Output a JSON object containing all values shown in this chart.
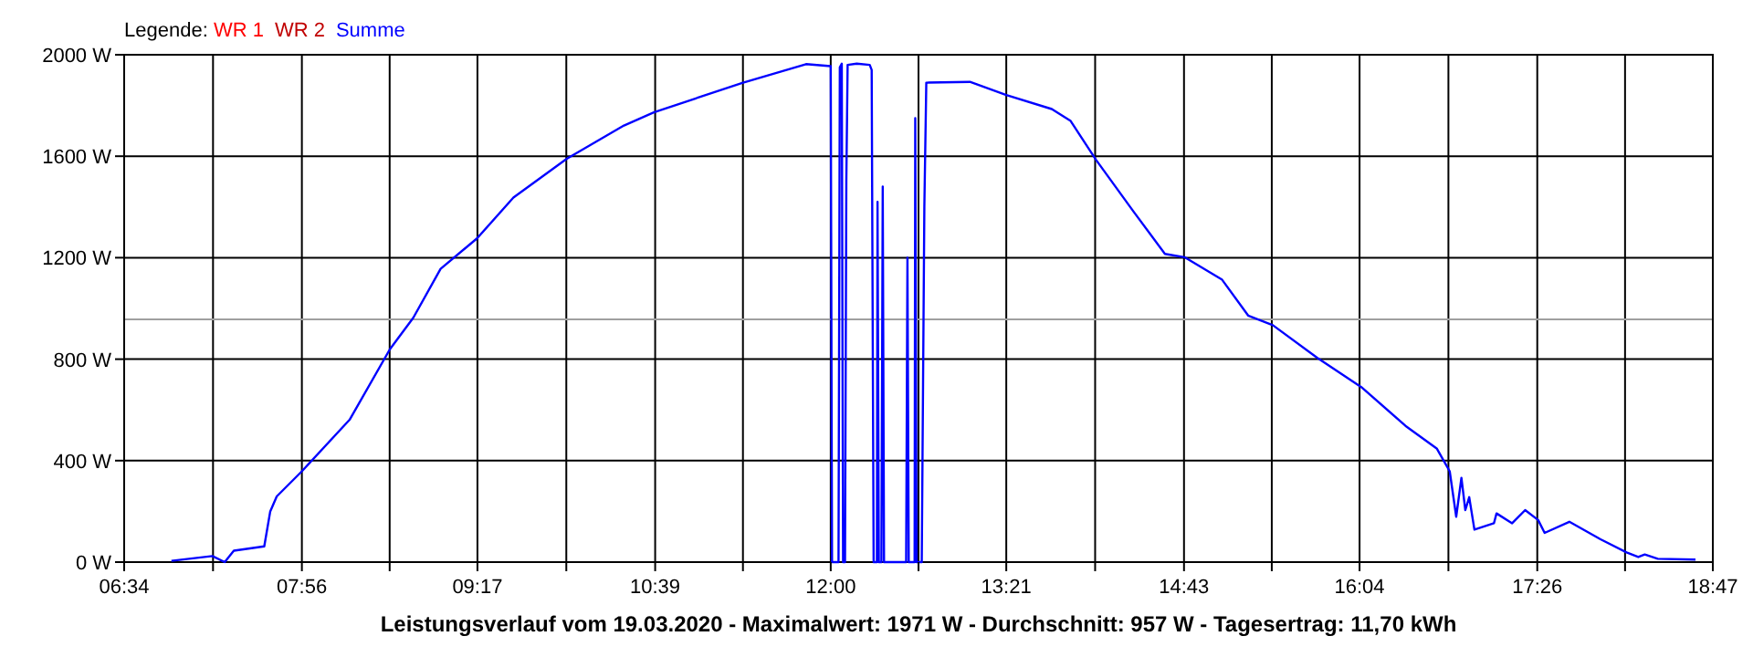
{
  "chart_data": {
    "type": "line",
    "xlabel": "Leistungsverlauf vom 19.03.2020 - Maximalwert: 1971 W - Durchschnitt: 957 W - Tagesertrag: 11,70 kWh",
    "legend_title": "Legende:",
    "legend": "top left",
    "grid": true,
    "marker": "none",
    "line_style": "solid",
    "xlim": [
      6.5667,
      18.7833
    ],
    "xticks": [
      {
        "value": 6.5667,
        "label": "06:34"
      },
      {
        "value": 7.25,
        "label": null
      },
      {
        "value": 7.9333,
        "label": "07:56"
      },
      {
        "value": 8.6083,
        "label": null
      },
      {
        "value": 9.2833,
        "label": "09:17"
      },
      {
        "value": 9.9667,
        "label": null
      },
      {
        "value": 10.65,
        "label": "10:39"
      },
      {
        "value": 11.325,
        "label": null
      },
      {
        "value": 12,
        "label": "12:00"
      },
      {
        "value": 12.675,
        "label": null
      },
      {
        "value": 13.35,
        "label": "13:21"
      },
      {
        "value": 14.0333,
        "label": null
      },
      {
        "value": 14.7167,
        "label": "14:43"
      },
      {
        "value": 15.3917,
        "label": null
      },
      {
        "value": 16.0667,
        "label": "16:04"
      },
      {
        "value": 16.75,
        "label": null
      },
      {
        "value": 17.4333,
        "label": "17:26"
      },
      {
        "value": 18.1083,
        "label": null
      },
      {
        "value": 18.7833,
        "label": "18:47"
      }
    ],
    "ylim": [
      0,
      2000
    ],
    "yticks": [
      {
        "value": 0,
        "label": "0 W"
      },
      {
        "value": 400,
        "label": "400 W"
      },
      {
        "value": 800,
        "label": "800 W"
      },
      {
        "value": 1200,
        "label": "1200 W"
      },
      {
        "value": 1600,
        "label": "1600 W"
      },
      {
        "value": 2000,
        "label": "2000 W"
      }
    ],
    "ref_lines": [
      {
        "axis": "y",
        "value": 957,
        "color": "#a0a0a0"
      }
    ],
    "series": [
      {
        "name": "WR 1",
        "color": "#ff0000"
      },
      {
        "name": "WR 2",
        "color": "#c00000"
      },
      {
        "name": "Summe",
        "color": "#0000ff",
        "x": [
          6.93,
          7.245,
          7.34,
          7.41,
          7.644,
          7.69,
          7.74,
          7.933,
          8.3,
          8.61,
          8.79,
          9.0,
          9.28,
          9.56,
          9.97,
          10.41,
          10.64,
          11.32,
          11.81,
          12.0,
          12.01,
          12.06,
          12.07,
          12.085,
          12.095,
          12.11,
          12.12,
          12.13,
          12.2,
          12.3,
          12.315,
          12.33,
          12.355,
          12.36,
          12.37,
          12.39,
          12.4,
          12.41,
          12.58,
          12.59,
          12.6,
          12.645,
          12.65,
          12.66,
          12.7,
          12.71,
          12.72,
          12.735,
          13.07,
          13.35,
          13.7,
          13.845,
          14.04,
          14.33,
          14.57,
          14.72,
          15.01,
          15.21,
          15.4,
          15.74,
          16.08,
          16.42,
          16.66,
          16.76,
          16.81,
          16.85,
          16.88,
          16.91,
          16.95,
          17.1,
          17.12,
          17.24,
          17.34,
          17.44,
          17.49,
          17.68,
          17.92,
          18.12,
          18.21,
          18.26,
          18.36,
          18.65
        ],
        "values": [
          5,
          24,
          0,
          45,
          62,
          200,
          259,
          358,
          561,
          839,
          963,
          1156,
          1276,
          1437,
          1590,
          1721,
          1773,
          1889,
          1963,
          1955,
          0,
          0,
          1950,
          1965,
          0,
          0,
          1500,
          1960,
          1965,
          1960,
          1940,
          0,
          0,
          1420,
          0,
          0,
          1480,
          0,
          0,
          1200,
          0,
          0,
          1750,
          0,
          0,
          700,
          1400,
          1890,
          1893,
          1841,
          1786,
          1739,
          1586,
          1381,
          1215,
          1202,
          1113,
          972,
          934,
          806,
          690,
          537,
          448,
          358,
          179,
          332,
          205,
          256,
          128,
          153,
          192,
          153,
          205,
          166,
          115,
          159,
          90,
          38,
          20,
          30,
          13,
          10
        ]
      }
    ]
  }
}
